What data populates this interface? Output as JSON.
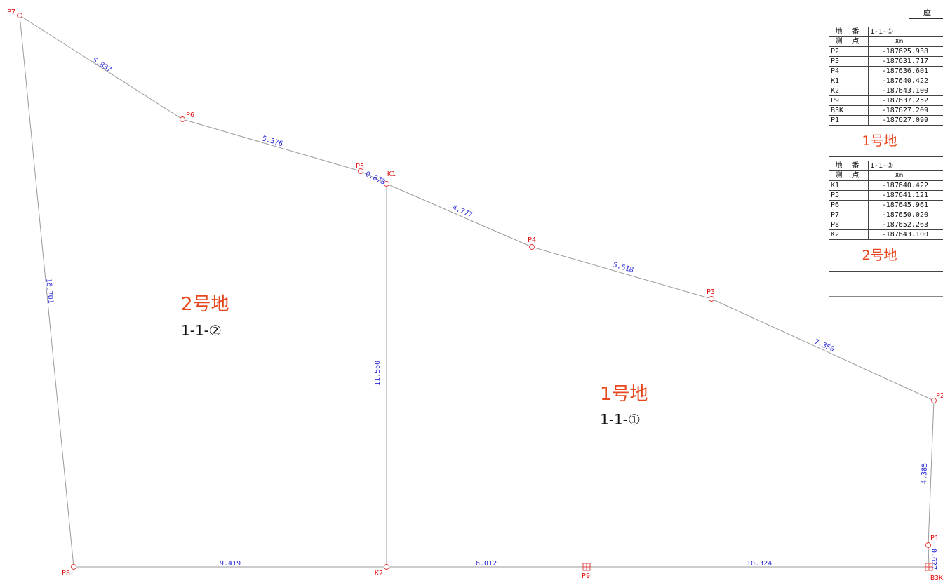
{
  "sheet_title": "座",
  "points": [
    {
      "id": "P7",
      "label": "P7"
    },
    {
      "id": "P6",
      "label": "P6"
    },
    {
      "id": "P5",
      "label": "P5"
    },
    {
      "id": "K1",
      "label": "K1"
    },
    {
      "id": "P4",
      "label": "P4"
    },
    {
      "id": "P3",
      "label": "P3"
    },
    {
      "id": "P2",
      "label": "P2"
    },
    {
      "id": "P1",
      "label": "P1"
    },
    {
      "id": "B3K",
      "label": "B3K"
    },
    {
      "id": "P9",
      "label": "P9"
    },
    {
      "id": "K2",
      "label": "K2"
    },
    {
      "id": "P8",
      "label": "P8"
    }
  ],
  "edge_lengths": {
    "P7_P6": "5.837",
    "P6_P5": "5.576",
    "P5_K1": "0.873",
    "K1_P4": "4.777",
    "P4_P3": "5.618",
    "P3_P2": "7.350",
    "P2_P1": "4.385",
    "P1_B3K": "0.627",
    "B3K_P9": "10.324",
    "P9_K2": "6.012",
    "K2_P8": "9.419",
    "P8_P7": "16.701",
    "K1_K2": "11.560"
  },
  "lots": [
    {
      "name": "2号地",
      "parcel": "1-1-②"
    },
    {
      "name": "1号地",
      "parcel": "1-1-①"
    }
  ],
  "tables": [
    {
      "header_parcel_label": "地 番",
      "parcel": "1-1-①",
      "header_point_label": "測 点",
      "col_x": "Xn",
      "rows": [
        {
          "point": "P2",
          "x": "-187625.938"
        },
        {
          "point": "P3",
          "x": "-187631.717"
        },
        {
          "point": "P4",
          "x": "-187636.601"
        },
        {
          "point": "K1",
          "x": "-187640.422"
        },
        {
          "point": "K2",
          "x": "-187643.100"
        },
        {
          "point": "P9",
          "x": "-187637.252"
        },
        {
          "point": "B3K",
          "x": "-187627.209"
        },
        {
          "point": "P1",
          "x": "-187627.099"
        }
      ],
      "lot_name": "1号地"
    },
    {
      "header_parcel_label": "地 番",
      "parcel": "1-1-②",
      "header_point_label": "測 点",
      "col_x": "Xn",
      "rows": [
        {
          "point": "K1",
          "x": "-187640.422"
        },
        {
          "point": "P5",
          "x": "-187641.121"
        },
        {
          "point": "P6",
          "x": "-187645.961"
        },
        {
          "point": "P7",
          "x": "-187650.020"
        },
        {
          "point": "P8",
          "x": "-187652.263"
        },
        {
          "point": "K2",
          "x": "-187643.100"
        }
      ],
      "lot_name": "2号地"
    }
  ]
}
